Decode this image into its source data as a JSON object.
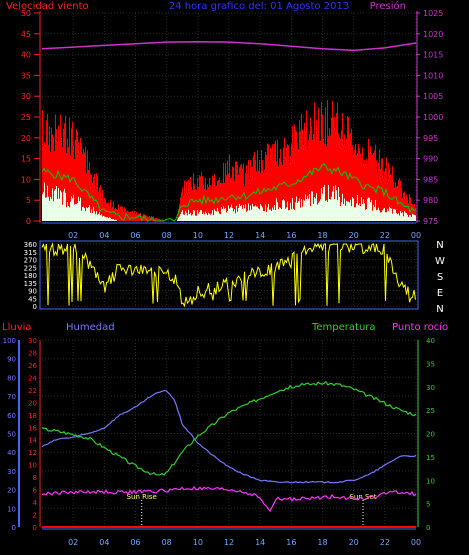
{
  "chart_data": [
    {
      "type": "line",
      "panel": "wind-pressure",
      "title": "24 hora grafico del: 01 Agosto 2013",
      "left_axis_label": "Velocidad viento",
      "right_axis_label": "Presión",
      "x_ticks": [
        "02",
        "04",
        "06",
        "08",
        "10",
        "12",
        "14",
        "16",
        "18",
        "20",
        "22",
        "00"
      ],
      "y_left_ticks": [
        0,
        5,
        10,
        15,
        20,
        25,
        30,
        35,
        40,
        45,
        50
      ],
      "y_left_range": [
        0,
        50
      ],
      "y_right_ticks": [
        975,
        980,
        985,
        990,
        995,
        1000,
        1005,
        1010,
        1015,
        1020,
        1025
      ],
      "y_right_range": [
        975,
        1025
      ],
      "x_range_hours": [
        0,
        24
      ],
      "grid": true,
      "colors": {
        "gust": "#ff0000",
        "average": "#00cc00",
        "min": "#e8ffe8",
        "pressure": "#cc33cc",
        "grid": "#2a2a2a"
      },
      "series": [
        {
          "name": "Presión",
          "axis": "right",
          "color": "#cc33cc",
          "x": [
            0,
            2,
            4,
            6,
            8,
            10,
            12,
            14,
            16,
            18,
            20,
            22,
            24
          ],
          "y": [
            1016.4,
            1016.8,
            1017.2,
            1017.6,
            1018.0,
            1018.1,
            1018.0,
            1017.6,
            1017.0,
            1016.4,
            1016.0,
            1016.6,
            1017.8
          ]
        },
        {
          "name": "gust",
          "axis": "left",
          "color": "#ff0000",
          "x": [
            0,
            1,
            2,
            3,
            4,
            5,
            6,
            7,
            8,
            8.6,
            9,
            10,
            11,
            12,
            13,
            14,
            15,
            16,
            17,
            18,
            19,
            20,
            21,
            22,
            23,
            24
          ],
          "y": [
            22,
            21,
            20,
            13,
            5,
            3,
            2,
            1,
            0,
            0,
            8,
            10,
            9,
            13,
            11,
            15,
            17,
            19,
            22,
            24,
            23,
            19,
            16,
            13,
            8,
            3
          ]
        },
        {
          "name": "average",
          "axis": "left",
          "color": "#00cc00",
          "x": [
            0,
            1,
            2,
            3,
            4,
            5,
            6,
            7,
            8,
            8.6,
            9,
            10,
            11,
            12,
            13,
            14,
            15,
            16,
            17,
            18,
            19,
            20,
            21,
            22,
            23,
            24
          ],
          "y": [
            12,
            11,
            10,
            6,
            2,
            1,
            1,
            0,
            0,
            0,
            4,
            5,
            5,
            6,
            6,
            7,
            8,
            9,
            11,
            13,
            12,
            10,
            8,
            7,
            4,
            2
          ]
        },
        {
          "name": "min",
          "axis": "left",
          "color": "#e8ffe8",
          "x": [
            0,
            1,
            2,
            3,
            4,
            5,
            6,
            7,
            8,
            8.6,
            9,
            10,
            11,
            12,
            13,
            14,
            15,
            16,
            17,
            18,
            19,
            20,
            21,
            22,
            23,
            24
          ],
          "y": [
            7,
            6,
            5,
            3,
            1,
            0,
            0,
            0,
            0,
            0,
            2,
            2,
            2,
            3,
            3,
            3,
            4,
            4,
            5,
            7,
            6,
            5,
            4,
            3,
            2,
            1
          ]
        }
      ]
    },
    {
      "type": "line",
      "panel": "wind-direction",
      "y_left_ticks": [
        0,
        45,
        90,
        135,
        180,
        225,
        270,
        315,
        360
      ],
      "y_range": [
        0,
        360
      ],
      "compass_labels": [
        "N",
        "W",
        "S",
        "E",
        "N"
      ],
      "x_range_hours": [
        0,
        24
      ],
      "grid": true,
      "series": [
        {
          "name": "direction",
          "color": "#ffff00",
          "x": [
            0,
            1,
            2,
            3,
            4,
            5,
            6,
            7,
            8,
            8.6,
            9,
            10,
            11,
            12,
            13,
            14,
            15,
            16,
            17,
            18,
            19,
            20,
            21,
            22,
            23,
            24
          ],
          "y": [
            350,
            330,
            340,
            250,
            100,
            230,
            190,
            220,
            180,
            150,
            30,
            80,
            100,
            130,
            170,
            200,
            220,
            260,
            330,
            345,
            350,
            350,
            340,
            330,
            120,
            60
          ]
        }
      ]
    },
    {
      "type": "line",
      "panel": "rain-humidity-temperature",
      "legend": [
        "Lluvia",
        "Humedad",
        "Temperatura",
        "Punto rocío"
      ],
      "x_ticks": [
        "02",
        "04",
        "06",
        "08",
        "10",
        "12",
        "14",
        "16",
        "18",
        "20",
        "22",
        "00"
      ],
      "y_humidity_ticks": [
        0,
        10,
        20,
        30,
        40,
        50,
        60,
        70,
        80,
        90,
        100
      ],
      "y_humidity_range": [
        0,
        100
      ],
      "y_rain_ticks": [
        0,
        2,
        4,
        6,
        8,
        10,
        12,
        14,
        16,
        18,
        20,
        22,
        24,
        26,
        28,
        30
      ],
      "y_rain_range": [
        0,
        30
      ],
      "y_temp_ticks": [
        0,
        5,
        10,
        15,
        20,
        25,
        30,
        35,
        40
      ],
      "y_temp_range": [
        0,
        40
      ],
      "x_range_hours": [
        0,
        24
      ],
      "grid": true,
      "annotations": [
        {
          "text": "Sun Rise",
          "x": 6.4
        },
        {
          "text": "Sun Set",
          "x": 20.6
        }
      ],
      "series": [
        {
          "name": "Lluvia",
          "axis": "rain",
          "color": "#ff0000",
          "x": [
            0,
            24
          ],
          "y": [
            0,
            0
          ]
        },
        {
          "name": "Humedad",
          "axis": "humidity",
          "color": "#7777ff",
          "x": [
            0,
            1,
            2,
            3,
            4,
            5,
            6,
            7,
            7.5,
            8,
            8.5,
            9,
            10,
            11,
            12,
            13,
            14,
            15,
            16,
            17,
            18,
            19,
            20,
            21,
            22,
            23,
            24
          ],
          "y": [
            43,
            47,
            48,
            50,
            53,
            60,
            64,
            70,
            72,
            73,
            68,
            55,
            45,
            38,
            32,
            28,
            25,
            24,
            24,
            24,
            24,
            24,
            25,
            28,
            33,
            38,
            38
          ]
        },
        {
          "name": "Temperatura",
          "axis": "temp",
          "color": "#33cc33",
          "x": [
            0,
            1,
            2,
            3,
            4,
            5,
            6,
            7,
            7.5,
            8,
            9,
            10,
            11,
            12,
            13,
            14,
            15,
            16,
            17,
            18,
            19,
            20,
            21,
            22,
            23,
            24
          ],
          "y": [
            21,
            20.5,
            19.8,
            19,
            17,
            15,
            13,
            11.5,
            11,
            11.5,
            16,
            19.5,
            22,
            24.5,
            26,
            27.5,
            29,
            30,
            30.5,
            30.8,
            30.5,
            29.5,
            28,
            26.5,
            25,
            24
          ]
        },
        {
          "name": "Punto rocío",
          "axis": "temp",
          "color": "#ff33ff",
          "x": [
            0,
            1,
            2,
            3,
            4,
            5,
            6,
            7,
            8,
            9,
            10,
            11,
            12,
            13,
            14,
            14.6,
            15,
            16,
            17,
            18,
            19,
            20,
            21,
            22,
            23,
            24
          ],
          "y": [
            7,
            7.3,
            7.5,
            7.5,
            7.5,
            7.4,
            7.5,
            7.6,
            7.8,
            8.2,
            8.2,
            8.1,
            8,
            7.5,
            6.3,
            3.2,
            6,
            6,
            6,
            6.4,
            6.6,
            6,
            6.2,
            7.2,
            7.5,
            7
          ]
        }
      ]
    }
  ]
}
